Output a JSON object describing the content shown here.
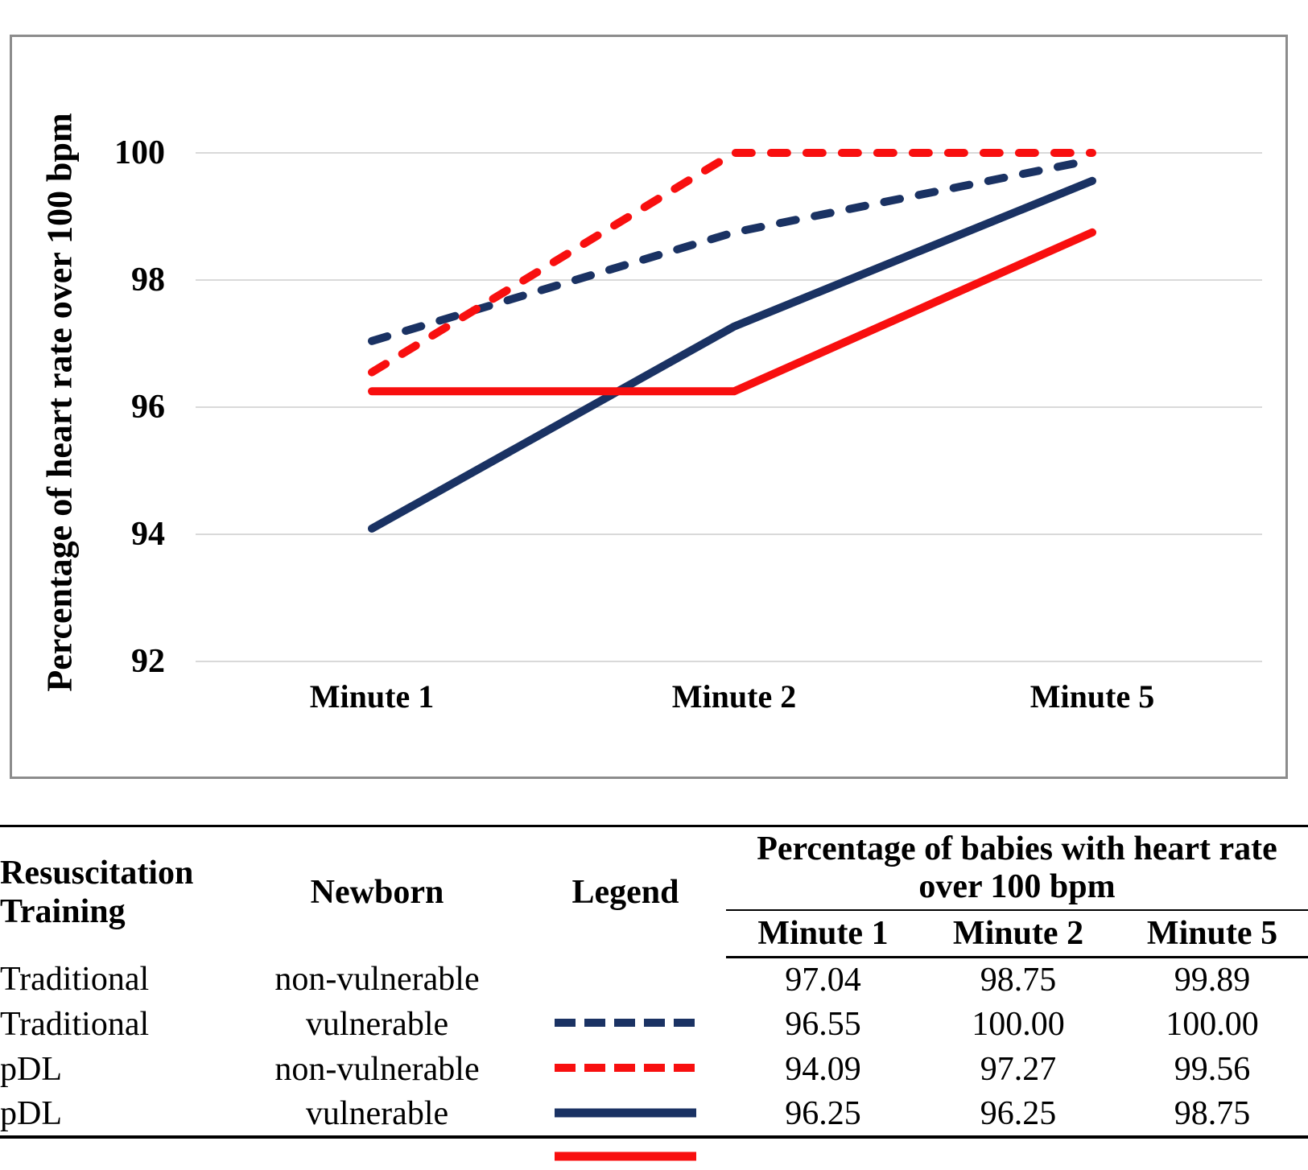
{
  "colors": {
    "navy": "#1A3263",
    "red": "#F80F0F",
    "gridline": "#D9D9D9",
    "chart_border": "#8C8C8C",
    "table_rule": "#000000"
  },
  "chart": {
    "y_axis_title": "Percentage of heart rate over 100 bpm",
    "y_ticks": [
      "100",
      "98",
      "96",
      "94",
      "92"
    ],
    "x_labels": [
      "Minute 1",
      "Minute 2",
      "Minute 5"
    ]
  },
  "chart_data": {
    "type": "line",
    "categories": [
      "Minute 1",
      "Minute 2",
      "Minute 5"
    ],
    "series": [
      {
        "name": "Traditional non-vulnerable",
        "values": [
          97.04,
          98.75,
          99.89
        ],
        "color": "#1A3263",
        "dash": true
      },
      {
        "name": "Traditional vulnerable",
        "values": [
          96.55,
          100.0,
          100.0
        ],
        "color": "#F80F0F",
        "dash": true
      },
      {
        "name": "pDL non-vulnerable",
        "values": [
          94.09,
          97.27,
          99.56
        ],
        "color": "#1A3263",
        "dash": false
      },
      {
        "name": "pDL vulnerable",
        "values": [
          96.25,
          96.25,
          98.75
        ],
        "color": "#F80F0F",
        "dash": false
      }
    ],
    "title": "",
    "xlabel": "",
    "ylabel": "Percentage of heart rate over 100 bpm",
    "y_tick_values": [
      100,
      98,
      96,
      94,
      92
    ],
    "ylim": [
      90.2,
      101.9
    ],
    "grid": true,
    "legend_position": "table-below-chart"
  },
  "table": {
    "headers": {
      "training": "Resuscitation Training",
      "newborn": "Newborn",
      "legend": "Legend",
      "group": "Percentage of babies with heart rate over 100 bpm",
      "minutes": [
        "Minute 1",
        "Minute 2",
        "Minute 5"
      ]
    },
    "rows": [
      {
        "training": "Traditional",
        "newborn": "non-vulnerable",
        "legend_style": "navy-dashed",
        "m1": "97.04",
        "m2": "98.75",
        "m5": "99.89"
      },
      {
        "training": "Traditional",
        "newborn": "vulnerable",
        "legend_style": "red-dashed",
        "m1": "96.55",
        "m2": "100.00",
        "m5": "100.00"
      },
      {
        "training": "pDL",
        "newborn": "non-vulnerable",
        "legend_style": "navy-solid",
        "m1": "94.09",
        "m2": "97.27",
        "m5": "99.56"
      },
      {
        "training": "pDL",
        "newborn": "vulnerable",
        "legend_style": "red-solid",
        "m1": "96.25",
        "m2": "96.25",
        "m5": "98.75"
      }
    ]
  }
}
